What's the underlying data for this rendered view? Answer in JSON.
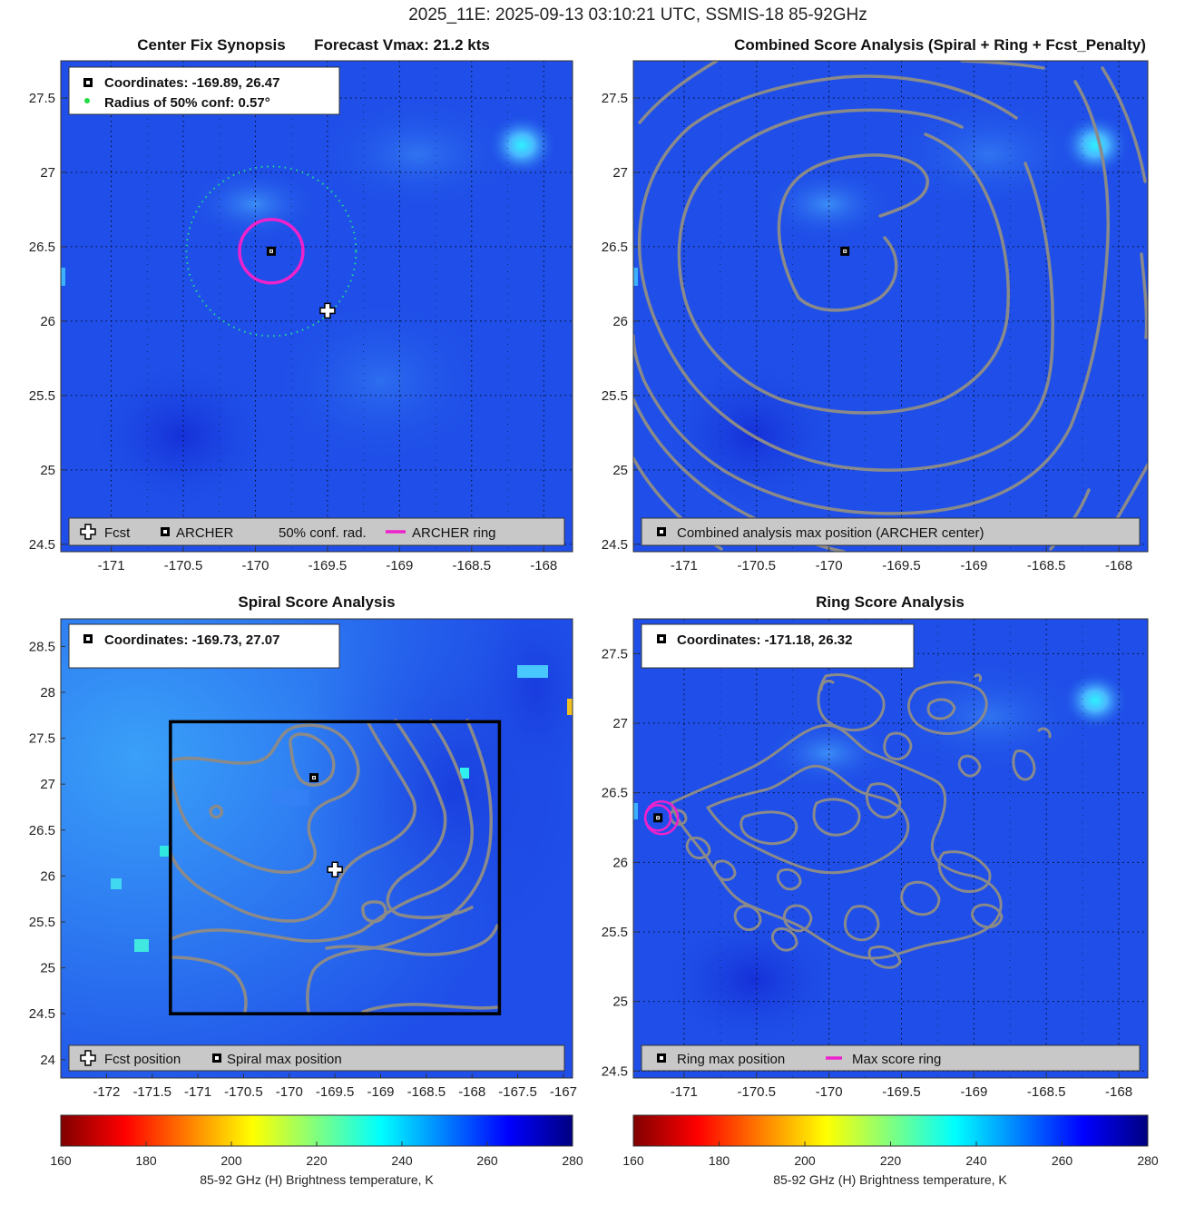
{
  "figure_title": "2025_11E: 2025-09-13 03:10:21 UTC, SSMIS-18 85-92GHz",
  "colors": {
    "background_field": "#1f4fe8",
    "contour": "#8a8a8a",
    "archer_ring": "#ee22cc",
    "conf_circle": "#22dd88",
    "box": "#000000",
    "legend_bg": "#c8c8c8"
  },
  "panels": {
    "synopsis": {
      "title_left": "Center Fix Synopsis",
      "title_right": "Forecast Vmax: 21.2 kts",
      "info_coords": "Coordinates: -169.89, 26.47",
      "info_radius": "Radius of 50% conf: 0.57°",
      "legend": {
        "fcst": "Fcst",
        "archer": "ARCHER",
        "conf": "50% conf. rad.",
        "ring": "ARCHER ring"
      }
    },
    "combined": {
      "title": "Combined Score Analysis (Spiral + Ring + Fcst_Penalty)",
      "legend": {
        "max": "Combined analysis max position (ARCHER center)"
      }
    },
    "spiral": {
      "title": "Spiral Score Analysis",
      "info_coords": "Coordinates: -169.73, 27.07",
      "legend": {
        "fcst": "Fcst position",
        "max": "Spiral max position"
      }
    },
    "ring": {
      "title": "Ring Score Analysis",
      "info_coords": "Coordinates: -171.18, 26.32",
      "legend": {
        "max": "Ring max position",
        "ring": "Max score ring"
      }
    }
  },
  "colorbar": {
    "label": "85-92 GHz (H) Brightness temperature, K",
    "ticks": [
      "160",
      "180",
      "200",
      "220",
      "240",
      "260",
      "280"
    ],
    "range": [
      160,
      280
    ]
  },
  "chart_data": [
    {
      "type": "heatmap",
      "panel": "synopsis",
      "title": "Center Fix Synopsis     Forecast Vmax: 21.2 kts",
      "xlim": [
        -171.35,
        -167.8
      ],
      "ylim": [
        24.45,
        27.75
      ],
      "xticks": [
        -171,
        -170.5,
        -170,
        -169.5,
        -169,
        -168.5,
        -168
      ],
      "yticks": [
        24.5,
        25,
        25.5,
        26,
        26.5,
        27,
        27.5
      ],
      "xtick_labels": [
        "-171",
        "-170.5",
        "-170",
        "-169.5",
        "-169",
        "-168.5",
        "-168"
      ],
      "ytick_labels": [
        "24.5",
        "25",
        "25.5",
        "26",
        "26.5",
        "27",
        "27.5"
      ],
      "grid": true,
      "archer_center": [
        -169.89,
        26.47
      ],
      "forecast_position": [
        -169.5,
        26.07
      ],
      "conf_radius_deg": 0.57,
      "archer_ring_radius_deg": 0.22
    },
    {
      "type": "heatmap",
      "panel": "combined",
      "title": "Combined Score Analysis (Spiral + Ring + Fcst_Penalty)",
      "xlim": [
        -171.35,
        -167.8
      ],
      "ylim": [
        24.45,
        27.75
      ],
      "xticks": [
        -171,
        -170.5,
        -170,
        -169.5,
        -169,
        -168.5,
        -168
      ],
      "yticks": [
        24.5,
        25,
        25.5,
        26,
        26.5,
        27,
        27.5
      ],
      "xtick_labels": [
        "-171",
        "-170.5",
        "-170",
        "-169.5",
        "-169",
        "-168.5",
        "-168"
      ],
      "ytick_labels": [
        "24.5",
        "25",
        "25.5",
        "26",
        "26.5",
        "27",
        "27.5"
      ],
      "grid": true,
      "max_position": [
        -169.89,
        26.47
      ]
    },
    {
      "type": "heatmap",
      "panel": "spiral",
      "title": "Spiral Score Analysis",
      "xlim": [
        -172.5,
        -166.9
      ],
      "ylim": [
        23.8,
        28.8
      ],
      "xticks": [
        -172,
        -171.5,
        -171,
        -170.5,
        -170,
        -169.5,
        -169,
        -168.5,
        -168,
        -167.5,
        -167
      ],
      "yticks": [
        24,
        24.5,
        25,
        25.5,
        26,
        26.5,
        27,
        27.5,
        28,
        28.5
      ],
      "xtick_labels": [
        "-172",
        "-171.5",
        "-171",
        "-170.5",
        "-170",
        "-169.5",
        "-169",
        "-168.5",
        "-168",
        "-167.5",
        "-167"
      ],
      "ytick_labels": [
        "24",
        "24.5",
        "25",
        "25.5",
        "26",
        "26.5",
        "27",
        "27.5",
        "28",
        "28.5"
      ],
      "grid": false,
      "max_position": [
        -169.73,
        27.07
      ],
      "forecast_position": [
        -169.5,
        26.07
      ],
      "search_box": {
        "lon": [
          -171.3,
          -167.7
        ],
        "lat": [
          24.5,
          27.68
        ]
      }
    },
    {
      "type": "heatmap",
      "panel": "ring",
      "title": "Ring Score Analysis",
      "xlim": [
        -171.35,
        -167.8
      ],
      "ylim": [
        24.45,
        27.75
      ],
      "xticks": [
        -171,
        -170.5,
        -170,
        -169.5,
        -169,
        -168.5,
        -168
      ],
      "yticks": [
        24.5,
        25,
        25.5,
        26,
        26.5,
        27,
        27.5
      ],
      "xtick_labels": [
        "-171",
        "-170.5",
        "-170",
        "-169.5",
        "-169",
        "-168.5",
        "-168"
      ],
      "ytick_labels": [
        "24.5",
        "25",
        "25.5",
        "26",
        "26.5",
        "27",
        "27.5"
      ],
      "grid": true,
      "max_position": [
        -171.18,
        26.32
      ]
    }
  ]
}
